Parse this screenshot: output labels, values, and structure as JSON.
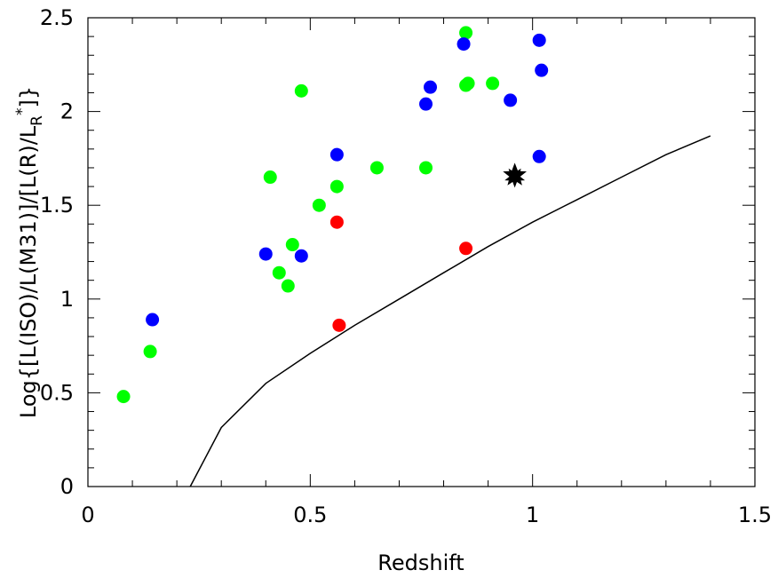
{
  "chart_data": {
    "type": "scatter",
    "xlabel": "Redshift",
    "ylabel": "Log{[L(ISO)/L(M31)]/[L(R)/L_R*]}",
    "xlim": [
      0,
      1.5
    ],
    "ylim": [
      0,
      2.5
    ],
    "x_ticks": [
      "0",
      "0.5",
      "1",
      "1.5"
    ],
    "y_ticks": [
      "0",
      "0.5",
      "1",
      "1.5",
      "2",
      "2.5"
    ],
    "grid": false,
    "legend": "none",
    "colors": {
      "green": "#00ff00",
      "blue": "#0000ff",
      "red": "#ff0000",
      "star": "#000000"
    },
    "series": [
      {
        "color": "#00ff00",
        "points": [
          [
            0.08,
            0.48
          ],
          [
            0.14,
            0.72
          ],
          [
            0.41,
            1.65
          ],
          [
            0.43,
            1.14
          ],
          [
            0.45,
            1.07
          ],
          [
            0.46,
            1.29
          ],
          [
            0.48,
            2.11
          ],
          [
            0.52,
            1.5
          ],
          [
            0.56,
            1.6
          ],
          [
            0.65,
            1.7
          ],
          [
            0.76,
            1.7
          ],
          [
            0.85,
            2.14
          ],
          [
            0.855,
            2.15
          ],
          [
            0.85,
            2.42
          ],
          [
            0.91,
            2.15
          ]
        ]
      },
      {
        "color": "#0000ff",
        "points": [
          [
            0.145,
            0.89
          ],
          [
            0.4,
            1.24
          ],
          [
            0.48,
            1.23
          ],
          [
            0.56,
            1.77
          ],
          [
            0.76,
            2.04
          ],
          [
            0.77,
            2.13
          ],
          [
            0.845,
            2.36
          ],
          [
            0.95,
            2.06
          ],
          [
            1.015,
            2.38
          ],
          [
            1.02,
            2.22
          ],
          [
            1.015,
            1.76
          ]
        ]
      },
      {
        "color": "#ff0000",
        "points": [
          [
            0.56,
            1.41
          ],
          [
            0.565,
            0.86
          ],
          [
            0.85,
            1.27
          ]
        ]
      }
    ],
    "star": {
      "x": 0.96,
      "y": 1.66,
      "color": "#000000"
    },
    "curve": [
      [
        0.23,
        0.0
      ],
      [
        0.3,
        0.315
      ],
      [
        0.4,
        0.55
      ],
      [
        0.5,
        0.71
      ],
      [
        0.6,
        0.86
      ],
      [
        0.7,
        1.0
      ],
      [
        0.8,
        1.14
      ],
      [
        0.9,
        1.28
      ],
      [
        1.0,
        1.41
      ],
      [
        1.1,
        1.53
      ],
      [
        1.2,
        1.65
      ],
      [
        1.3,
        1.77
      ],
      [
        1.4,
        1.87
      ]
    ]
  }
}
